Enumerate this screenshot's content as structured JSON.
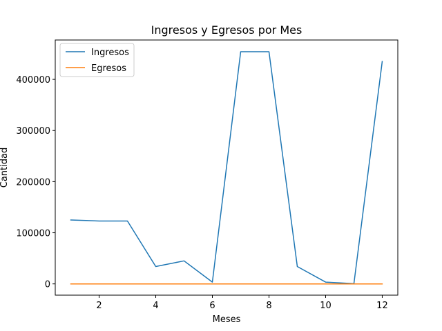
{
  "chart_data": {
    "type": "line",
    "title": "Ingresos y Egresos por Mes",
    "xlabel": "Meses",
    "ylabel": "Cantidad",
    "x": [
      1,
      2,
      3,
      4,
      5,
      6,
      7,
      8,
      9,
      10,
      11,
      12
    ],
    "xlim": [
      0.45,
      12.55
    ],
    "ylim": [
      -22000,
      477000
    ],
    "xticks": [
      2,
      4,
      6,
      8,
      10,
      12
    ],
    "xtick_labels": [
      "2",
      "4",
      "6",
      "8",
      "10",
      "12"
    ],
    "yticks": [
      0,
      100000,
      200000,
      300000,
      400000
    ],
    "ytick_labels": [
      "0",
      "100000",
      "200000",
      "300000",
      "400000"
    ],
    "grid": false,
    "legend_position": "top-left",
    "series": [
      {
        "name": "Ingresos",
        "color": "#1f77b4",
        "values": [
          125000,
          123000,
          123000,
          34000,
          45000,
          3500,
          454000,
          454000,
          34000,
          3500,
          500,
          435000
        ]
      },
      {
        "name": "Egresos",
        "color": "#ff7f0e",
        "values": [
          0,
          0,
          0,
          0,
          0,
          0,
          0,
          0,
          0,
          0,
          0,
          0
        ]
      }
    ]
  }
}
